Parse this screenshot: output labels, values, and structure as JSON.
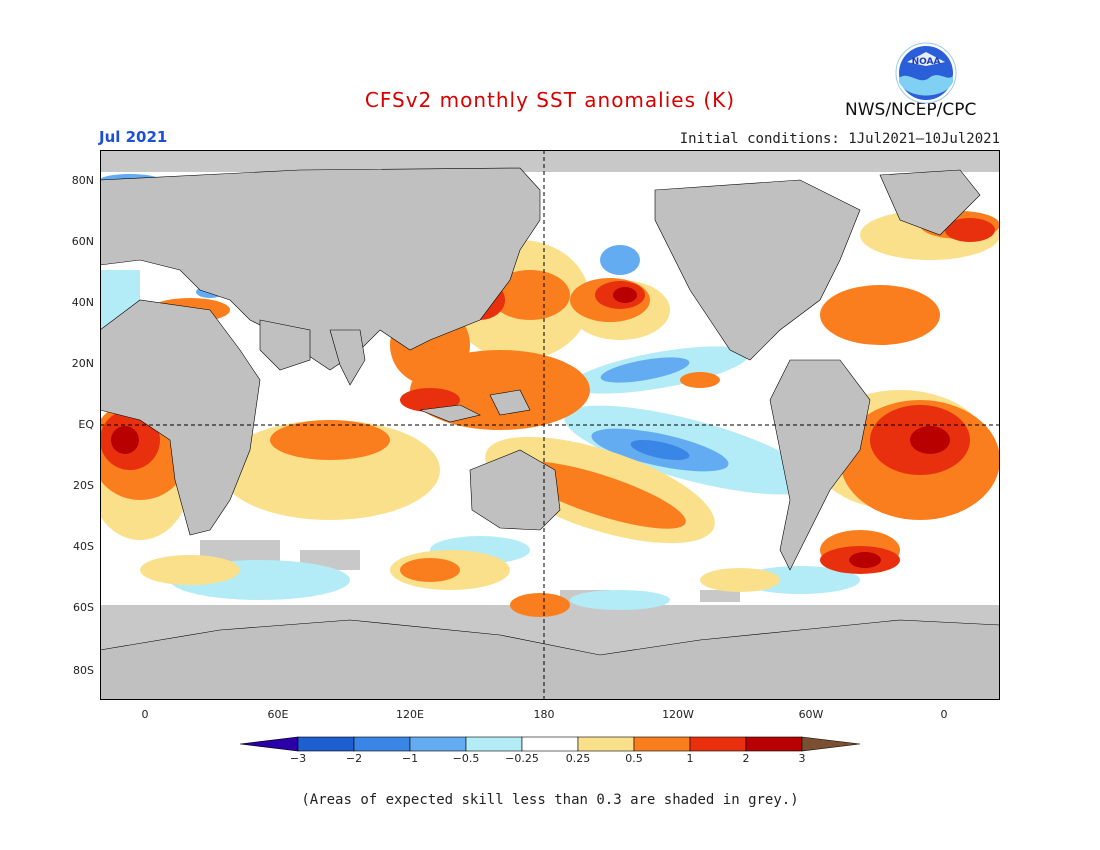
{
  "title": "CFSv2 monthly SST anomalies (K)",
  "month": "Jul 2021",
  "initial_conditions": "Initial conditions: 1Jul2021–10Jul2021",
  "organization": "NWS/NCEP/CPC",
  "logo_text": "NOAA",
  "skill_note": "(Areas of expected skill less than 0.3 are shaded in grey.)",
  "lat_labels": [
    "80N",
    "60N",
    "40N",
    "20N",
    "EQ",
    "20S",
    "40S",
    "60S",
    "80S"
  ],
  "lon_labels": [
    "0",
    "60E",
    "120E",
    "180",
    "120W",
    "60W",
    "0"
  ],
  "colorbar": {
    "labels": [
      "−3",
      "−2",
      "−1",
      "−0.5",
      "−0.25",
      "0.25",
      "0.5",
      "1",
      "2",
      "3"
    ],
    "colors": [
      "#2a00a8",
      "#1e5fd0",
      "#3a86e6",
      "#64acf2",
      "#b3ecf6",
      "#ffffff",
      "#fbe08c",
      "#fb7e1e",
      "#e8300f",
      "#b80000",
      "#7a5030"
    ]
  },
  "map_colors": {
    "land": "#c0c0c0",
    "skill_grey": "#c8c8c8"
  }
}
